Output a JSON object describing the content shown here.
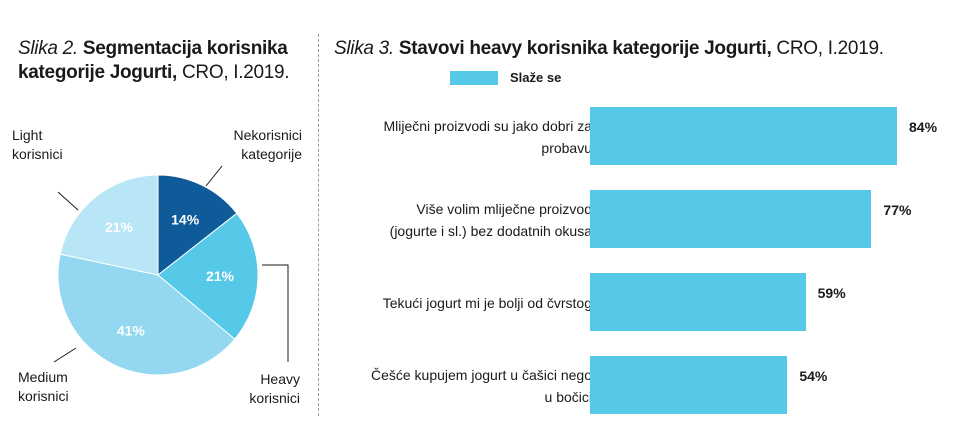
{
  "figure2": {
    "title_lead": "Slika 2.",
    "title_main": "Segmentacija korisnika kategorije Jogurti,",
    "title_tail": "CRO, I.2019.",
    "chart_data": {
      "type": "pie",
      "slices": [
        {
          "label": "Nekorisnici kategorije",
          "value": 14,
          "display": "14%",
          "color": "#0f5a99"
        },
        {
          "label": "Heavy korisnici",
          "value": 21,
          "display": "21%",
          "color": "#56c8e8"
        },
        {
          "label": "Medium korisnici",
          "value": 41,
          "display": "41%",
          "color": "#93d8f0"
        },
        {
          "label": "Light korisnici",
          "value": 21,
          "display": "21%",
          "color": "#b8e6f7"
        }
      ],
      "labels": {
        "nekorisnici": [
          "Nekorisnici",
          "kategorije"
        ],
        "heavy": [
          "Heavy",
          "korisnici"
        ],
        "medium": [
          "Medium",
          "korisnici"
        ],
        "light": [
          "Light",
          "korisnici"
        ]
      }
    }
  },
  "figure3": {
    "title_lead": "Slika 3.",
    "title_main": "Stavovi heavy korisnika kategorije Jogurti,",
    "title_tail": "CRO, I.2019.",
    "chart_data": {
      "type": "bar",
      "orientation": "horizontal",
      "legend": "Slaže se",
      "legend_position": "top-left",
      "color": "#56c8e8",
      "xlim": [
        0,
        100
      ],
      "grid": false,
      "categories": [
        [
          "Mliječni proizvodi su jako dobri za",
          "probavu"
        ],
        [
          "Više volim mliječne proizvod",
          "(jogurte i sl.) bez dodatnih okusa"
        ],
        [
          "Tekući jogurt mi je bolji od čvrstog"
        ],
        [
          "Češće kupujem jogurt u čašici nego",
          "u bočici"
        ]
      ],
      "values": [
        84,
        77,
        59,
        54
      ],
      "value_labels": [
        "84%",
        "77%",
        "59%",
        "54%"
      ]
    }
  }
}
